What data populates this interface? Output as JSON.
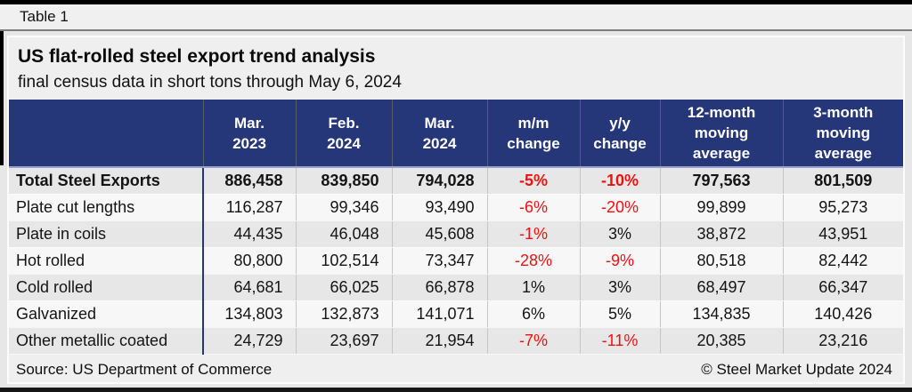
{
  "page": {
    "tab_label": "Table 1"
  },
  "report": {
    "title": "US flat-rolled steel export trend analysis",
    "subtitle": "final census data in short tons through May 6, 2024"
  },
  "chart_data": {
    "type": "table",
    "title": "US flat-rolled steel export trend analysis",
    "subtitle": "final census data in short tons through May 6, 2024",
    "columns": [
      "",
      "Mar. 2023",
      "Feb. 2024",
      "Mar. 2024",
      "m/m change",
      "y/y change",
      "12-month moving average",
      "3-month moving average"
    ],
    "rows": [
      {
        "label": "Total Steel Exports",
        "bold": true,
        "values": [
          "886,458",
          "839,850",
          "794,028",
          "-5%",
          "-10%",
          "797,563",
          "801,509"
        ]
      },
      {
        "label": "Plate cut lengths",
        "bold": false,
        "values": [
          "116,287",
          "99,346",
          "93,490",
          "-6%",
          "-20%",
          "99,899",
          "95,273"
        ]
      },
      {
        "label": "Plate in coils",
        "bold": false,
        "values": [
          "44,435",
          "46,048",
          "45,608",
          "-1%",
          "3%",
          "38,872",
          "43,951"
        ]
      },
      {
        "label": "Hot rolled",
        "bold": false,
        "values": [
          "80,800",
          "102,514",
          "73,347",
          "-28%",
          "-9%",
          "80,518",
          "82,442"
        ]
      },
      {
        "label": "Cold rolled",
        "bold": false,
        "values": [
          "64,681",
          "66,025",
          "66,878",
          "1%",
          "3%",
          "68,497",
          "66,347"
        ]
      },
      {
        "label": "Galvanized",
        "bold": false,
        "values": [
          "134,803",
          "132,873",
          "141,071",
          "6%",
          "5%",
          "134,835",
          "140,426"
        ]
      },
      {
        "label": "Other metallic coated",
        "bold": false,
        "values": [
          "24,729",
          "23,697",
          "21,954",
          "-7%",
          "-11%",
          "20,385",
          "23,216"
        ]
      }
    ],
    "notes": "negative percent changes are shown in red"
  },
  "footer": {
    "source": "Source: US Department of Commerce",
    "copyright": "© Steel Market Update 2024"
  },
  "colors": {
    "header_bg": "#253778",
    "header_text": "#ffffff",
    "negative_value": "#ee1111",
    "row_shaded": "#e7e7e7",
    "row_light": "#f7f7f7",
    "frame": "#000000"
  }
}
